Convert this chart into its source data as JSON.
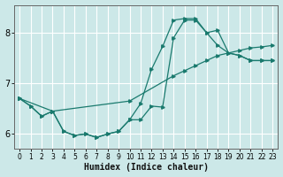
{
  "xlabel": "Humidex (Indice chaleur)",
  "bg_color": "#cce8e8",
  "grid_color": "#ffffff",
  "line_color": "#1a7a6e",
  "xlim": [
    -0.5,
    23.5
  ],
  "ylim": [
    5.7,
    8.55
  ],
  "yticks": [
    6,
    7,
    8
  ],
  "xticks": [
    0,
    1,
    2,
    3,
    4,
    5,
    6,
    7,
    8,
    9,
    10,
    11,
    12,
    13,
    14,
    15,
    16,
    17,
    18,
    19,
    20,
    21,
    22,
    23
  ],
  "line_diagonal_x": [
    0,
    3,
    10,
    14,
    15,
    16,
    17,
    18,
    19,
    20,
    21,
    22,
    23
  ],
  "line_diagonal_y": [
    6.7,
    6.45,
    6.65,
    7.15,
    7.25,
    7.35,
    7.45,
    7.55,
    7.6,
    7.65,
    7.7,
    7.72,
    7.75
  ],
  "line_lower_x": [
    0,
    1,
    2,
    3,
    4,
    5,
    6,
    7,
    8,
    9,
    10,
    11,
    12,
    13,
    14,
    15,
    16,
    17,
    18,
    19,
    20,
    21,
    22,
    23
  ],
  "line_lower_y": [
    6.7,
    6.55,
    6.35,
    6.45,
    6.05,
    5.97,
    6.0,
    5.93,
    6.0,
    6.05,
    6.28,
    6.28,
    6.55,
    6.53,
    7.9,
    8.25,
    8.25,
    8.0,
    8.05,
    7.6,
    7.55,
    7.45,
    7.45,
    7.45
  ],
  "line_upper_x": [
    0,
    1,
    2,
    3,
    4,
    5,
    6,
    7,
    8,
    9,
    10,
    11,
    12,
    13,
    14,
    15,
    16,
    17,
    18,
    19,
    20,
    21,
    22,
    23
  ],
  "line_upper_y": [
    6.7,
    6.55,
    6.35,
    6.45,
    6.05,
    5.97,
    6.0,
    5.93,
    6.0,
    6.05,
    6.28,
    6.6,
    7.28,
    7.73,
    8.25,
    8.28,
    8.28,
    8.0,
    7.75,
    7.6,
    7.55,
    7.45,
    7.45,
    7.45
  ]
}
